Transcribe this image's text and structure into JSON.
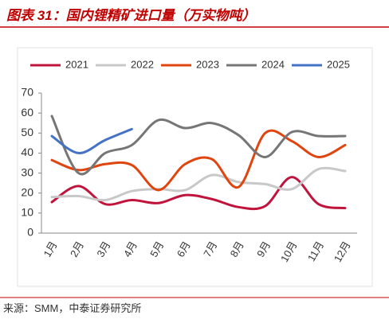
{
  "chart_data": {
    "type": "line",
    "title": "图表 31：国内锂精矿进口量（万实物吨）",
    "source": "来源：SMM，中泰证券研究所",
    "categories": [
      "1月",
      "2月",
      "3月",
      "4月",
      "5月",
      "6月",
      "7月",
      "8月",
      "9月",
      "10月",
      "11月",
      "12月"
    ],
    "series": [
      {
        "name": "2021",
        "color": "#c0143c",
        "values": [
          15.5,
          23.5,
          14.5,
          16.5,
          15,
          19,
          17,
          13,
          13.5,
          28,
          14.5,
          12.5
        ]
      },
      {
        "name": "2022",
        "color": "#c8c8c8",
        "values": [
          18,
          18.5,
          16.5,
          21,
          22,
          21.5,
          29,
          25.5,
          24.5,
          22,
          32,
          31
        ]
      },
      {
        "name": "2023",
        "color": "#e0450f",
        "values": [
          36.5,
          31.5,
          34.5,
          34,
          21.5,
          34.5,
          37,
          23,
          50,
          46,
          38,
          44
        ]
      },
      {
        "name": "2024",
        "color": "#767676",
        "values": [
          58.5,
          30,
          40,
          44,
          56.5,
          52.5,
          55,
          49,
          38,
          50.5,
          48.5,
          48.5
        ]
      },
      {
        "name": "2025",
        "color": "#4472c4",
        "values": [
          48.5,
          40,
          46.5,
          52,
          null,
          null,
          null,
          null,
          null,
          null,
          null,
          null
        ]
      }
    ],
    "ylim": [
      0,
      70
    ],
    "yticks": [
      0,
      10,
      20,
      30,
      40,
      50,
      60,
      70
    ],
    "legend": "top"
  }
}
